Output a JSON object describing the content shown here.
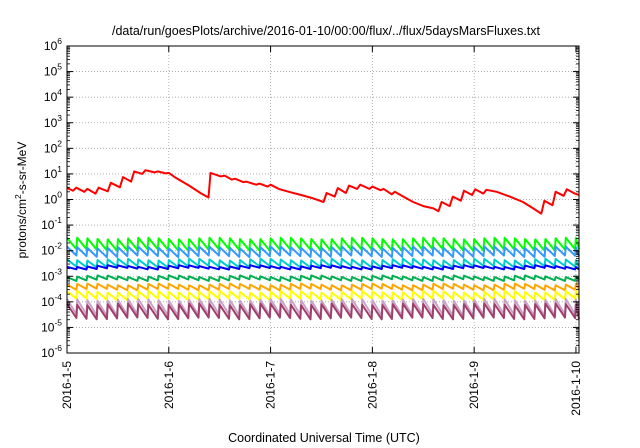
{
  "chart_data": {
    "type": "line",
    "title": "/data/run/goesPlots/archive/2016-01-10/00:00/flux/../flux/5daysMarsFluxes.txt",
    "xlabel": "Coordinated Universal Time (UTC)",
    "ylabel": "protons/cm2-s-sr-MeV",
    "y_scale": "log",
    "ylim": [
      1e-06,
      1000000.0
    ],
    "xlim_days": [
      0,
      5.03
    ],
    "x_ticks": [
      {
        "label": "2016-1-5",
        "day": 0
      },
      {
        "label": "2016-1-6",
        "day": 1
      },
      {
        "label": "2016-1-7",
        "day": 2
      },
      {
        "label": "2016-1-8",
        "day": 3
      },
      {
        "label": "2016-1-9",
        "day": 4
      },
      {
        "label": "2016-1-10",
        "day": 5
      }
    ],
    "y_ticks": [
      {
        "base": "10",
        "exp": "-6",
        "value": 1e-06
      },
      {
        "base": "10",
        "exp": "-5",
        "value": 1e-05
      },
      {
        "base": "10",
        "exp": "-4",
        "value": 0.0001
      },
      {
        "base": "10",
        "exp": "-3",
        "value": 0.001
      },
      {
        "base": "10",
        "exp": "-2",
        "value": 0.01
      },
      {
        "base": "10",
        "exp": "-1",
        "value": 0.1
      },
      {
        "base": "10",
        "exp": "0",
        "value": 1
      },
      {
        "base": "10",
        "exp": "1",
        "value": 10
      },
      {
        "base": "10",
        "exp": "2",
        "value": 100
      },
      {
        "base": "10",
        "exp": "3",
        "value": 1000
      },
      {
        "base": "10",
        "exp": "4",
        "value": 10000.0
      },
      {
        "base": "10",
        "exp": "5",
        "value": 100000.0
      },
      {
        "base": "10",
        "exp": "6",
        "value": 1000000.0
      }
    ],
    "grid": true,
    "series": [
      {
        "color": "#ff0000",
        "points": [
          [
            0.0,
            2.8
          ],
          [
            0.06,
            2.2
          ],
          [
            0.09,
            2.9
          ],
          [
            0.17,
            2.0
          ],
          [
            0.2,
            2.6
          ],
          [
            0.28,
            1.7
          ],
          [
            0.31,
            2.9
          ],
          [
            0.4,
            2.1
          ],
          [
            0.43,
            4.5
          ],
          [
            0.52,
            3.0
          ],
          [
            0.55,
            7.5
          ],
          [
            0.63,
            5.0
          ],
          [
            0.66,
            12.5
          ],
          [
            0.74,
            10.0
          ],
          [
            0.77,
            14.0
          ],
          [
            0.86,
            11.5
          ],
          [
            0.89,
            12.5
          ],
          [
            0.97,
            10.5
          ],
          [
            1.0,
            11.0
          ],
          [
            1.07,
            7.0
          ],
          [
            1.2,
            3.5
          ],
          [
            1.32,
            1.7
          ],
          [
            1.39,
            1.2
          ],
          [
            1.41,
            11.0
          ],
          [
            1.51,
            8.0
          ],
          [
            1.55,
            8.5
          ],
          [
            1.62,
            6.0
          ],
          [
            1.65,
            6.5
          ],
          [
            1.73,
            4.8
          ],
          [
            1.76,
            5.0
          ],
          [
            1.86,
            3.8
          ],
          [
            1.89,
            4.2
          ],
          [
            1.97,
            3.2
          ],
          [
            2.0,
            3.8
          ],
          [
            2.08,
            2.6
          ],
          [
            2.18,
            2.0
          ],
          [
            2.3,
            1.5
          ],
          [
            2.42,
            1.1
          ],
          [
            2.52,
            0.8
          ],
          [
            2.55,
            1.8
          ],
          [
            2.63,
            1.3
          ],
          [
            2.66,
            2.8
          ],
          [
            2.74,
            1.8
          ],
          [
            2.77,
            3.5
          ],
          [
            2.85,
            2.6
          ],
          [
            2.88,
            3.8
          ],
          [
            2.97,
            2.6
          ],
          [
            3.0,
            3.2
          ],
          [
            3.08,
            2.3
          ],
          [
            3.11,
            2.6
          ],
          [
            3.19,
            1.6
          ],
          [
            3.22,
            2.0
          ],
          [
            3.32,
            1.2
          ],
          [
            3.4,
            0.8
          ],
          [
            3.5,
            0.55
          ],
          [
            3.6,
            0.45
          ],
          [
            3.65,
            0.35
          ],
          [
            3.68,
            0.8
          ],
          [
            3.76,
            0.55
          ],
          [
            3.79,
            1.3
          ],
          [
            3.87,
            0.9
          ],
          [
            3.9,
            2.2
          ],
          [
            3.98,
            1.5
          ],
          [
            4.01,
            2.5
          ],
          [
            4.09,
            1.7
          ],
          [
            4.12,
            2.4
          ],
          [
            4.22,
            2.0
          ],
          [
            4.35,
            1.3
          ],
          [
            4.48,
            0.8
          ],
          [
            4.58,
            0.45
          ],
          [
            4.66,
            0.28
          ],
          [
            4.69,
            0.9
          ],
          [
            4.77,
            0.6
          ],
          [
            4.8,
            2.0
          ],
          [
            4.88,
            1.4
          ],
          [
            4.91,
            2.5
          ],
          [
            4.99,
            1.7
          ],
          [
            5.03,
            1.5
          ]
        ]
      },
      {
        "color": "#00ff00",
        "base": 0.03,
        "amp": 0.45
      },
      {
        "color": "#3399ff",
        "base": 0.0135,
        "amp": 0.35
      },
      {
        "color": "#00cccc",
        "base": 0.0045,
        "amp": 0.28
      },
      {
        "color": "#0000ff",
        "base": 0.0025,
        "amp": 0.1
      },
      {
        "color": "#00b050",
        "base": 0.001,
        "amp": 0.15
      },
      {
        "color": "#ffa500",
        "base": 0.00048,
        "amp": 0.2
      },
      {
        "color": "#ffff00",
        "base": 0.00025,
        "amp": 0.3
      },
      {
        "color": "#c8a2c8",
        "base": 0.00012,
        "amp": 0.6
      },
      {
        "color": "#a0406a",
        "base": 8e-05,
        "amp": 0.55
      }
    ]
  }
}
